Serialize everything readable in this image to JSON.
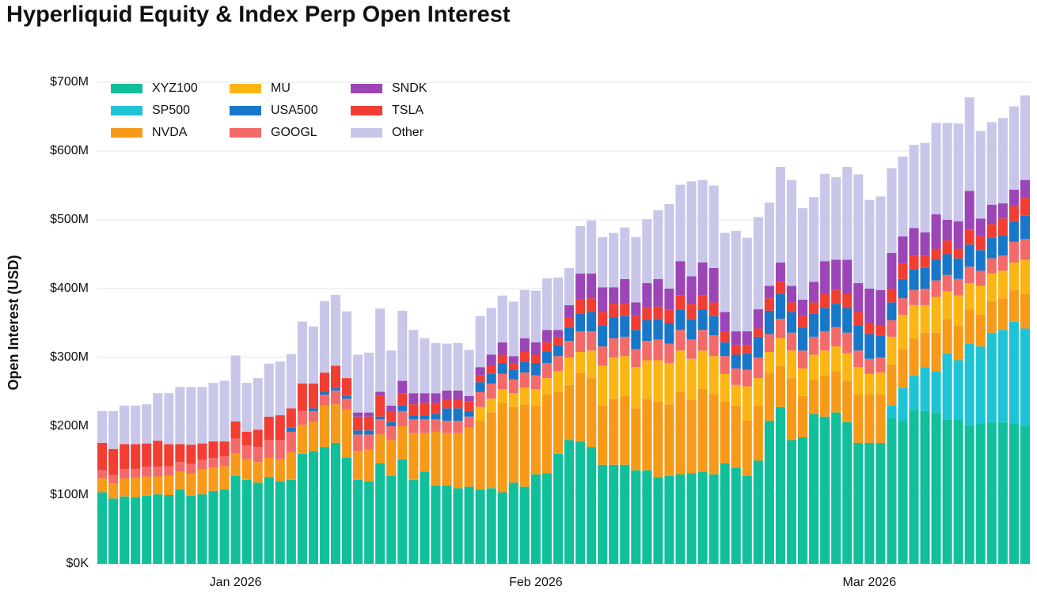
{
  "chart_data": {
    "type": "stacked_bar",
    "title": "Hyperliquid Equity & Index Perp Open Interest",
    "y_label": "Open Interest (USD)",
    "categories": [
      null,
      null,
      null,
      null,
      null,
      null,
      null,
      null,
      null,
      null,
      null,
      null,
      "Jan 2026",
      null,
      null,
      null,
      null,
      null,
      null,
      null,
      null,
      null,
      null,
      null,
      null,
      null,
      null,
      null,
      null,
      null,
      null,
      null,
      null,
      null,
      null,
      null,
      null,
      null,
      null,
      "Feb 2026",
      null,
      null,
      null,
      null,
      null,
      null,
      null,
      null,
      null,
      null,
      null,
      null,
      null,
      null,
      null,
      null,
      null,
      null,
      null,
      null,
      null,
      null,
      null,
      null,
      null,
      null,
      null,
      null,
      null,
      "Mar 2026",
      null,
      null,
      null,
      null,
      null,
      null,
      null,
      null,
      null,
      null,
      null,
      null,
      null,
      null
    ],
    "ylim": [
      0,
      700
    ],
    "yticks": [
      {
        "value": 0,
        "label": "$0K"
      },
      {
        "value": 100,
        "label": "$100M"
      },
      {
        "value": 200,
        "label": "$200M"
      },
      {
        "value": 300,
        "label": "$300M"
      },
      {
        "value": 400,
        "label": "$400M"
      },
      {
        "value": 500,
        "label": "$500M"
      },
      {
        "value": 600,
        "label": "$600M"
      },
      {
        "value": 700,
        "label": "$700M"
      }
    ],
    "grid": true,
    "legend": "top-left",
    "series": [
      {
        "name": "XYZ100",
        "color": "#12bf9b",
        "values": [
          104,
          95,
          98,
          97,
          99,
          101,
          100,
          108,
          99,
          101,
          106,
          108,
          128,
          122,
          118,
          126,
          120,
          122,
          160,
          164,
          170,
          176,
          154,
          122,
          120,
          146,
          128,
          152,
          122,
          134,
          114,
          114,
          110,
          112,
          108,
          110,
          104,
          118,
          112,
          130,
          132,
          160,
          180,
          178,
          170,
          144,
          144,
          144,
          136,
          136,
          126,
          128,
          130,
          132,
          134,
          130,
          146,
          140,
          128,
          150,
          208,
          228,
          180,
          184,
          218,
          214,
          220,
          206,
          176,
          176,
          176,
          212,
          208,
          224,
          222,
          220,
          210,
          210,
          202,
          204,
          206,
          206,
          204,
          200
        ]
      },
      {
        "name": "SP500",
        "color": "#1fc3d6",
        "values": [
          0,
          0,
          0,
          0,
          0,
          0,
          0,
          0,
          0,
          0,
          0,
          0,
          0,
          0,
          0,
          0,
          0,
          0,
          0,
          0,
          0,
          0,
          0,
          0,
          0,
          0,
          0,
          0,
          0,
          0,
          0,
          0,
          0,
          0,
          0,
          0,
          0,
          0,
          0,
          0,
          0,
          0,
          0,
          0,
          0,
          0,
          0,
          0,
          0,
          0,
          0,
          0,
          0,
          0,
          0,
          0,
          0,
          0,
          0,
          0,
          0,
          0,
          0,
          0,
          0,
          0,
          0,
          0,
          0,
          0,
          0,
          18,
          48,
          50,
          64,
          60,
          96,
          86,
          118,
          112,
          130,
          134,
          148,
          142
        ]
      },
      {
        "name": "NVDA",
        "color": "#f79a1a",
        "values": [
          20,
          22,
          26,
          28,
          28,
          26,
          28,
          26,
          32,
          36,
          34,
          34,
          32,
          30,
          30,
          28,
          32,
          40,
          42,
          42,
          60,
          56,
          70,
          42,
          46,
          42,
          52,
          48,
          68,
          56,
          78,
          76,
          80,
          86,
          100,
          110,
          130,
          110,
          120,
          100,
          114,
          90,
          80,
          100,
          100,
          86,
          96,
          100,
          90,
          104,
          110,
          104,
          120,
          106,
          120,
          116,
          90,
          90,
          80,
          80,
          70,
          60,
          90,
          60,
          50,
          60,
          60,
          60,
          70,
          70,
          70,
          60,
          56,
          54,
          50,
          56,
          50,
          50,
          50,
          46,
          46,
          46,
          46,
          50
        ]
      },
      {
        "name": "MU",
        "color": "#fbb615",
        "values": [
          0,
          0,
          0,
          0,
          0,
          0,
          0,
          0,
          0,
          0,
          0,
          0,
          0,
          0,
          0,
          0,
          0,
          0,
          0,
          0,
          0,
          0,
          0,
          0,
          0,
          0,
          0,
          0,
          0,
          0,
          0,
          0,
          0,
          0,
          20,
          20,
          20,
          20,
          24,
          24,
          24,
          30,
          40,
          30,
          40,
          58,
          60,
          58,
          60,
          56,
          60,
          60,
          60,
          60,
          56,
          56,
          40,
          30,
          50,
          40,
          30,
          40,
          40,
          40,
          36,
          36,
          36,
          40,
          40,
          30,
          32,
          40,
          50,
          48,
          40,
          52,
          40,
          44,
          38,
          42,
          40,
          40,
          40,
          50
        ]
      },
      {
        "name": "GOOGL",
        "color": "#f46a6a",
        "values": [
          12,
          12,
          14,
          13,
          14,
          14,
          14,
          14,
          14,
          14,
          14,
          14,
          22,
          20,
          22,
          26,
          28,
          30,
          20,
          16,
          16,
          20,
          16,
          24,
          22,
          22,
          20,
          22,
          20,
          20,
          18,
          18,
          18,
          16,
          22,
          22,
          22,
          20,
          22,
          20,
          22,
          22,
          24,
          30,
          28,
          28,
          28,
          28,
          26,
          28,
          30,
          28,
          30,
          28,
          30,
          30,
          26,
          24,
          24,
          30,
          26,
          28,
          26,
          26,
          26,
          28,
          28,
          30,
          24,
          22,
          22,
          24,
          24,
          22,
          24,
          24,
          24,
          24,
          24,
          22,
          22,
          22,
          30,
          30
        ]
      },
      {
        "name": "USA500",
        "color": "#1877c9",
        "values": [
          0,
          0,
          0,
          0,
          0,
          0,
          0,
          0,
          0,
          0,
          0,
          0,
          0,
          0,
          0,
          0,
          0,
          6,
          0,
          4,
          4,
          4,
          4,
          6,
          6,
          4,
          6,
          8,
          6,
          6,
          8,
          18,
          18,
          8,
          14,
          14,
          16,
          14,
          16,
          18,
          16,
          16,
          20,
          26,
          28,
          30,
          30,
          30,
          28,
          30,
          30,
          30,
          30,
          30,
          30,
          28,
          20,
          20,
          24,
          30,
          34,
          36,
          30,
          34,
          34,
          34,
          34,
          36,
          36,
          36,
          32,
          26,
          28,
          30,
          30,
          30,
          30,
          30,
          32,
          30,
          30,
          30,
          30,
          34
        ]
      },
      {
        "name": "TSLA",
        "color": "#f23d33",
        "values": [
          40,
          38,
          36,
          36,
          34,
          38,
          32,
          26,
          28,
          24,
          24,
          22,
          25,
          20,
          25,
          34,
          36,
          28,
          40,
          36,
          28,
          32,
          26,
          20,
          20,
          30,
          16,
          18,
          16,
          18,
          16,
          12,
          12,
          14,
          10,
          12,
          12,
          10,
          14,
          12,
          14,
          12,
          14,
          20,
          20,
          20,
          20,
          18,
          20,
          18,
          18,
          20,
          20,
          22,
          20,
          20,
          16,
          14,
          12,
          12,
          18,
          18,
          14,
          16,
          16,
          20,
          20,
          20,
          20,
          16,
          14,
          20,
          22,
          20,
          18,
          16,
          20,
          14,
          22,
          20,
          20,
          24,
          22,
          26
        ]
      },
      {
        "name": "SNDK",
        "color": "#9b45b7",
        "values": [
          0,
          0,
          0,
          0,
          0,
          0,
          0,
          0,
          0,
          0,
          0,
          0,
          0,
          0,
          0,
          0,
          0,
          0,
          0,
          0,
          0,
          0,
          0,
          6,
          6,
          6,
          8,
          18,
          16,
          14,
          14,
          14,
          14,
          8,
          12,
          16,
          18,
          10,
          20,
          18,
          18,
          10,
          18,
          38,
          36,
          36,
          24,
          36,
          20,
          36,
          40,
          30,
          50,
          40,
          48,
          50,
          28,
          20,
          20,
          28,
          18,
          28,
          24,
          24,
          30,
          48,
          44,
          50,
          42,
          50,
          52,
          52,
          40,
          40,
          34,
          50,
          30,
          40,
          56,
          26,
          28,
          22,
          24,
          26
        ]
      },
      {
        "name": "Other",
        "color": "#c9c7e9",
        "values": [
          46,
          55,
          56,
          56,
          57,
          69,
          74,
          83,
          84,
          82,
          85,
          88,
          96,
          71,
          75,
          77,
          78,
          79,
          90,
          83,
          104,
          103,
          97,
          84,
          87,
          121,
          80,
          102,
          92,
          80,
          73,
          68,
          69,
          67,
          74,
          68,
          68,
          79,
          70,
          75,
          75,
          76,
          54,
          69,
          77,
          73,
          79,
          75,
          95,
          93,
          100,
          123,
          111,
          138,
          120,
          120,
          115,
          146,
          136,
          134,
          121,
          139,
          154,
          133,
          123,
          127,
          120,
          135,
          158,
          129,
          136,
          123,
          116,
          121,
          130,
          133,
          141,
          142,
          136,
          127,
          120,
          124,
          121,
          123
        ]
      }
    ]
  }
}
